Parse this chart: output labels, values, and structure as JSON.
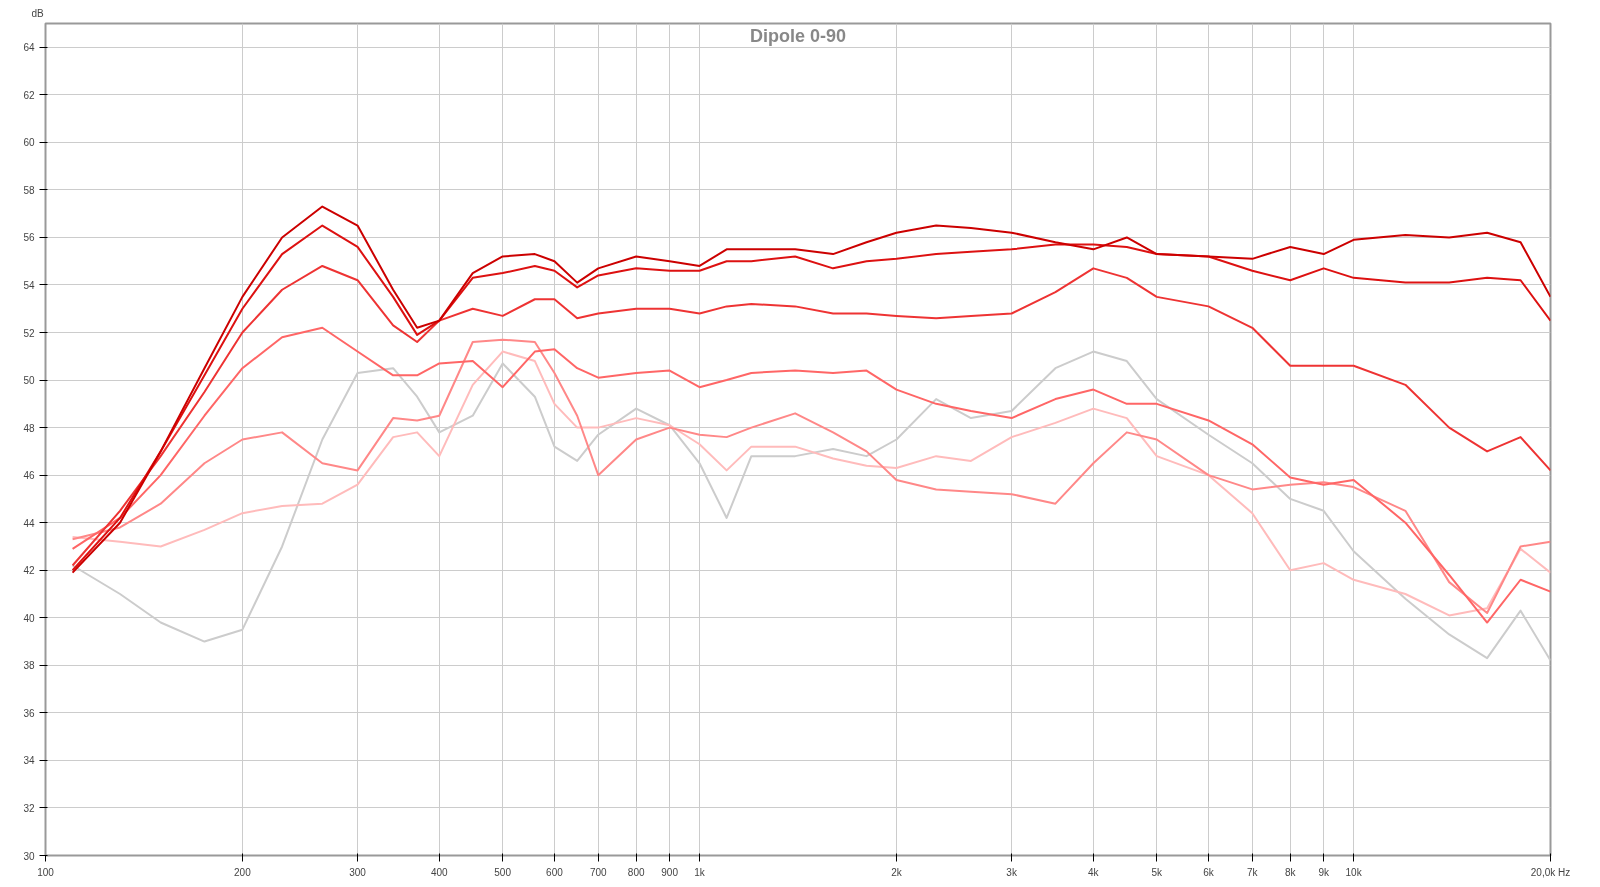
{
  "chart_data": {
    "type": "line",
    "title": "Dipole 0-90",
    "ylabel": "dB",
    "log": "x",
    "grid": true,
    "line_style": "solid",
    "marker": "none",
    "x": [
      110,
      130,
      150,
      175,
      200,
      230,
      265,
      300,
      340,
      370,
      400,
      450,
      500,
      560,
      600,
      650,
      700,
      800,
      900,
      1000,
      1100,
      1200,
      1400,
      1600,
      1800,
      2000,
      2300,
      2600,
      3000,
      3500,
      4000,
      4500,
      5000,
      6000,
      7000,
      8000,
      9000,
      10000,
      12000,
      14000,
      16000,
      18000,
      20000
    ],
    "xlim": [
      100,
      20000
    ],
    "xticks": [
      {
        "value": 100,
        "label": "100"
      },
      {
        "value": 200,
        "label": "200"
      },
      {
        "value": 300,
        "label": "300"
      },
      {
        "value": 400,
        "label": "400"
      },
      {
        "value": 500,
        "label": "500"
      },
      {
        "value": 600,
        "label": "600"
      },
      {
        "value": 700,
        "label": "700"
      },
      {
        "value": 800,
        "label": "800"
      },
      {
        "value": 900,
        "label": "900"
      },
      {
        "value": 1000,
        "label": "1k"
      },
      {
        "value": 2000,
        "label": "2k"
      },
      {
        "value": 3000,
        "label": "3k"
      },
      {
        "value": 4000,
        "label": "4k"
      },
      {
        "value": 5000,
        "label": "5k"
      },
      {
        "value": 6000,
        "label": "6k"
      },
      {
        "value": 7000,
        "label": "7k"
      },
      {
        "value": 8000,
        "label": "8k"
      },
      {
        "value": 9000,
        "label": "9k"
      },
      {
        "value": 10000,
        "label": "10k"
      },
      {
        "value": 20000,
        "label": "20,0k Hz"
      }
    ],
    "ylim": [
      30,
      65
    ],
    "yticks": [
      30,
      32,
      34,
      36,
      38,
      40,
      42,
      44,
      46,
      48,
      50,
      52,
      54,
      56,
      58,
      60,
      62,
      64
    ],
    "series": [
      {
        "color": "#cc0000",
        "values": [
          41.9,
          44,
          47,
          50.5,
          53.5,
          56,
          57.3,
          56.5,
          53.8,
          52.2,
          52.5,
          54.5,
          55.2,
          55.3,
          55,
          54.1,
          54.7,
          55.2,
          55,
          54.8,
          55.5,
          55.5,
          55.5,
          55.3,
          55.8,
          56.2,
          56.5,
          56.4,
          56.2,
          55.8,
          55.5,
          56,
          55.3,
          55.2,
          55.1,
          55.6,
          55.3,
          55.9,
          56.1,
          56,
          56.2,
          55.8,
          53.5
        ]
      },
      {
        "color": "#dd1111",
        "values": [
          42,
          44.2,
          47,
          50.2,
          53,
          55.3,
          56.5,
          55.6,
          53.5,
          51.9,
          52.5,
          54.3,
          54.5,
          54.8,
          54.6,
          53.9,
          54.4,
          54.7,
          54.6,
          54.6,
          55,
          55,
          55.2,
          54.7,
          55,
          55.1,
          55.3,
          55.4,
          55.5,
          55.7,
          55.7,
          55.6,
          55.3,
          55.2,
          54.6,
          54.2,
          54.7,
          54.3,
          54.1,
          54.1,
          54.3,
          54.2,
          52.5
        ]
      },
      {
        "color": "#ee3333",
        "values": [
          42.2,
          44.5,
          46.8,
          49.5,
          52,
          53.8,
          54.8,
          54.2,
          52.3,
          51.6,
          52.5,
          53,
          52.7,
          53.4,
          53.4,
          52.6,
          52.8,
          53,
          53,
          52.8,
          53.1,
          53.2,
          53.1,
          52.8,
          52.8,
          52.7,
          52.6,
          52.7,
          52.8,
          53.7,
          54.7,
          54.3,
          53.5,
          53.1,
          52.2,
          50.6,
          50.6,
          50.6,
          49.8,
          48,
          47,
          47.6,
          46.2
        ]
      },
      {
        "color": "#ff6666",
        "values": [
          42.9,
          44.2,
          46,
          48.5,
          50.5,
          51.8,
          52.2,
          51.2,
          50.2,
          50.2,
          50.7,
          50.8,
          49.7,
          51.2,
          51.3,
          50.5,
          50.1,
          50.3,
          50.4,
          49.7,
          50,
          50.3,
          50.4,
          50.3,
          50.4,
          49.6,
          49,
          48.7,
          48.4,
          49.2,
          49.6,
          49,
          49,
          48.3,
          47.3,
          45.9,
          45.6,
          45.8,
          44,
          41.8,
          39.8,
          41.6,
          41.1
        ]
      },
      {
        "color": "#ff8888",
        "values": [
          43.3,
          43.8,
          44.8,
          46.5,
          47.5,
          47.8,
          46.5,
          46.2,
          48.4,
          48.3,
          48.5,
          51.6,
          51.7,
          51.6,
          50.3,
          48.5,
          46,
          47.5,
          48,
          47.7,
          47.6,
          48,
          48.6,
          47.8,
          47,
          45.8,
          45.4,
          45.3,
          45.2,
          44.8,
          46.5,
          47.8,
          47.5,
          46,
          45.4,
          45.6,
          45.7,
          45.5,
          44.5,
          41.5,
          40.2,
          43,
          43.2
        ]
      },
      {
        "color": "#ffbbbb",
        "values": [
          43.4,
          43.2,
          43,
          43.7,
          44.4,
          44.7,
          44.8,
          45.6,
          47.6,
          47.8,
          46.8,
          49.8,
          51.2,
          50.8,
          49,
          48,
          48,
          48.4,
          48.1,
          47.3,
          46.2,
          47.2,
          47.2,
          46.7,
          46.4,
          46.3,
          46.8,
          46.6,
          47.6,
          48.2,
          48.8,
          48.4,
          46.8,
          46,
          44.4,
          42,
          42.3,
          41.6,
          41,
          40.1,
          40.4,
          42.9,
          41.9
        ]
      },
      {
        "color": "#cccccc",
        "values": [
          42.2,
          41,
          39.8,
          39,
          39.5,
          43,
          47.5,
          50.3,
          50.5,
          49.3,
          47.8,
          48.5,
          50.7,
          49.3,
          47.2,
          46.6,
          47.7,
          48.8,
          48.1,
          46.5,
          44.2,
          46.8,
          46.8,
          47.1,
          46.8,
          47.5,
          49.2,
          48.4,
          48.7,
          50.5,
          51.2,
          50.8,
          49.2,
          47.7,
          46.5,
          45,
          44.5,
          42.8,
          40.8,
          39.3,
          38.3,
          40.3,
          38.2
        ]
      }
    ]
  }
}
